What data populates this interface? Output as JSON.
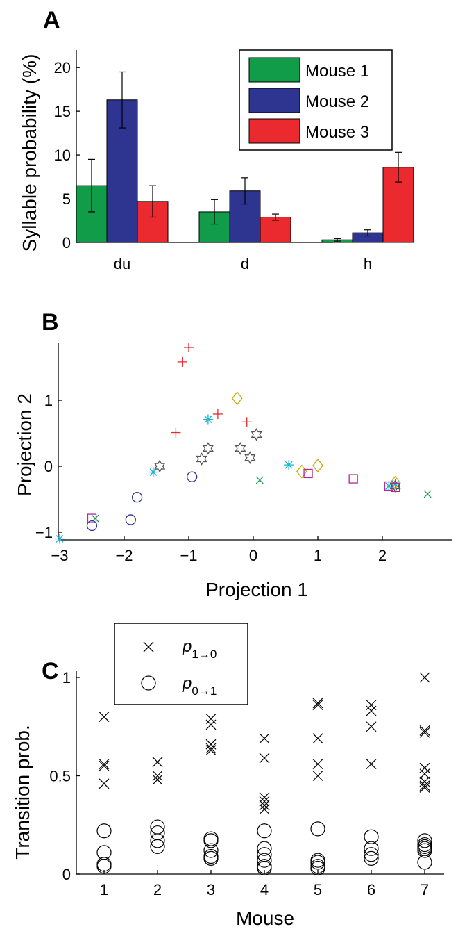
{
  "chart_data": [
    {
      "panel": "A",
      "type": "bar",
      "categories": [
        "du",
        "d",
        "h"
      ],
      "series": [
        {
          "name": "Mouse 1",
          "color": "#119c4a",
          "values": [
            6.5,
            3.5,
            0.3
          ],
          "errors": [
            3.0,
            1.4,
            0.15
          ]
        },
        {
          "name": "Mouse 2",
          "color": "#2e3591",
          "values": [
            16.3,
            5.9,
            1.1
          ],
          "errors": [
            3.2,
            1.5,
            0.35
          ]
        },
        {
          "name": "Mouse 3",
          "color": "#ea2a2f",
          "values": [
            4.7,
            2.9,
            8.6
          ],
          "errors": [
            1.8,
            0.35,
            1.7
          ]
        }
      ],
      "xlabel": "",
      "ylabel": "Syllable probability (%)",
      "ylim": [
        0,
        22
      ],
      "yticks": [
        0,
        5,
        10,
        15,
        20
      ],
      "legend_position": "top-right",
      "grid": false
    },
    {
      "panel": "B",
      "type": "scatter",
      "xlabel": "Projection 1",
      "ylabel": "Projection 2",
      "xlim": [
        -3,
        2.7
      ],
      "ylim": [
        -1.1,
        1.9
      ],
      "xticks": [
        -3,
        -2,
        -1,
        0,
        1,
        2
      ],
      "yticks": [
        -1,
        0,
        1
      ],
      "grid": false,
      "series": [
        {
          "marker": "plus",
          "color": "#ea2a2f",
          "points": [
            [
              -1.0,
              1.8
            ],
            [
              -1.1,
              1.58
            ],
            [
              -0.55,
              0.79
            ],
            [
              -1.2,
              0.51
            ],
            [
              -0.1,
              0.67
            ]
          ]
        },
        {
          "marker": "diamond",
          "color": "#c9a90a",
          "points": [
            [
              -0.25,
              1.03
            ],
            [
              0.75,
              -0.08
            ],
            [
              1.0,
              0.01
            ],
            [
              2.2,
              -0.25
            ]
          ]
        },
        {
          "marker": "asterisk",
          "color": "#1ab2d2",
          "points": [
            [
              -0.7,
              0.71
            ],
            [
              -1.55,
              -0.09
            ],
            [
              0.55,
              0.02
            ],
            [
              2.1,
              -0.3
            ],
            [
              2.2,
              -0.27
            ],
            [
              -3.0,
              -1.1
            ]
          ]
        },
        {
          "marker": "hexagram",
          "color": "#555555",
          "points": [
            [
              -1.45,
              0.0
            ],
            [
              -0.7,
              0.27
            ],
            [
              -0.8,
              0.11
            ],
            [
              -0.2,
              0.27
            ],
            [
              -0.05,
              0.13
            ],
            [
              0.05,
              0.48
            ],
            [
              2.2,
              -0.3
            ]
          ]
        },
        {
          "marker": "x",
          "color": "#119c4a",
          "points": [
            [
              0.1,
              -0.21
            ],
            [
              2.7,
              -0.42
            ],
            [
              -2.45,
              -0.79
            ]
          ]
        },
        {
          "marker": "circle",
          "color": "#2e3591",
          "points": [
            [
              -0.95,
              -0.16
            ],
            [
              -1.8,
              -0.47
            ],
            [
              -1.9,
              -0.81
            ],
            [
              -2.5,
              -0.9
            ]
          ]
        },
        {
          "marker": "square",
          "color": "#b0289b",
          "points": [
            [
              0.85,
              -0.11
            ],
            [
              1.55,
              -0.19
            ],
            [
              2.1,
              -0.3
            ],
            [
              2.2,
              -0.32
            ],
            [
              -2.5,
              -0.79
            ]
          ]
        }
      ]
    },
    {
      "panel": "C",
      "type": "scatter",
      "xlabel": "Mouse",
      "ylabel": "Transition prob.",
      "xlim": [
        0.5,
        7.6
      ],
      "ylim": [
        0,
        1.05
      ],
      "xticks": [
        1,
        2,
        3,
        4,
        5,
        6,
        7
      ],
      "yticks": [
        0,
        0.5,
        1
      ],
      "ytick_labels": [
        "0",
        "0.5",
        "1"
      ],
      "grid": false,
      "legend_position": "top-left",
      "series": [
        {
          "name": "p 1→0",
          "marker": "x",
          "color": "#000000",
          "points": [
            [
              1,
              0.8
            ],
            [
              1,
              0.56
            ],
            [
              1,
              0.55
            ],
            [
              1,
              0.46
            ],
            [
              2,
              0.57
            ],
            [
              2,
              0.5
            ],
            [
              2,
              0.48
            ],
            [
              3,
              0.79
            ],
            [
              3,
              0.76
            ],
            [
              3,
              0.66
            ],
            [
              3,
              0.64
            ],
            [
              3,
              0.63
            ],
            [
              4,
              0.69
            ],
            [
              4,
              0.59
            ],
            [
              4,
              0.39
            ],
            [
              4,
              0.37
            ],
            [
              4,
              0.35
            ],
            [
              4,
              0.33
            ],
            [
              5,
              0.87
            ],
            [
              5,
              0.86
            ],
            [
              5,
              0.69
            ],
            [
              5,
              0.56
            ],
            [
              5,
              0.5
            ],
            [
              6,
              0.86
            ],
            [
              6,
              0.83
            ],
            [
              6,
              0.75
            ],
            [
              6,
              0.56
            ],
            [
              7,
              1.0
            ],
            [
              7,
              0.73
            ],
            [
              7,
              0.72
            ],
            [
              7,
              0.54
            ],
            [
              7,
              0.51
            ],
            [
              7,
              0.47
            ],
            [
              7,
              0.45
            ],
            [
              7,
              0.44
            ]
          ]
        },
        {
          "name": "p 0→1",
          "marker": "circle",
          "color": "#000000",
          "points": [
            [
              1,
              0.22
            ],
            [
              1,
              0.11
            ],
            [
              1,
              0.05
            ],
            [
              1,
              0.04
            ],
            [
              2,
              0.24
            ],
            [
              2,
              0.21
            ],
            [
              2,
              0.17
            ],
            [
              2,
              0.14
            ],
            [
              3,
              0.18
            ],
            [
              3,
              0.17
            ],
            [
              3,
              0.12
            ],
            [
              3,
              0.09
            ],
            [
              3,
              0.08
            ],
            [
              4,
              0.22
            ],
            [
              4,
              0.13
            ],
            [
              4,
              0.1
            ],
            [
              4,
              0.07
            ],
            [
              4,
              0.04
            ],
            [
              4,
              0.03
            ],
            [
              5,
              0.23
            ],
            [
              5,
              0.07
            ],
            [
              5,
              0.06
            ],
            [
              5,
              0.04
            ],
            [
              5,
              0.03
            ],
            [
              6,
              0.19
            ],
            [
              6,
              0.13
            ],
            [
              6,
              0.1
            ],
            [
              6,
              0.08
            ],
            [
              7,
              0.17
            ],
            [
              7,
              0.15
            ],
            [
              7,
              0.14
            ],
            [
              7,
              0.13
            ],
            [
              7,
              0.12
            ],
            [
              7,
              0.06
            ]
          ]
        }
      ]
    }
  ],
  "panel_labels": [
    "A",
    "B",
    "C"
  ],
  "legend_c": {
    "cross_base": "p",
    "cross_sub": "1→0",
    "circle_base": "p",
    "circle_sub": "0→1"
  }
}
